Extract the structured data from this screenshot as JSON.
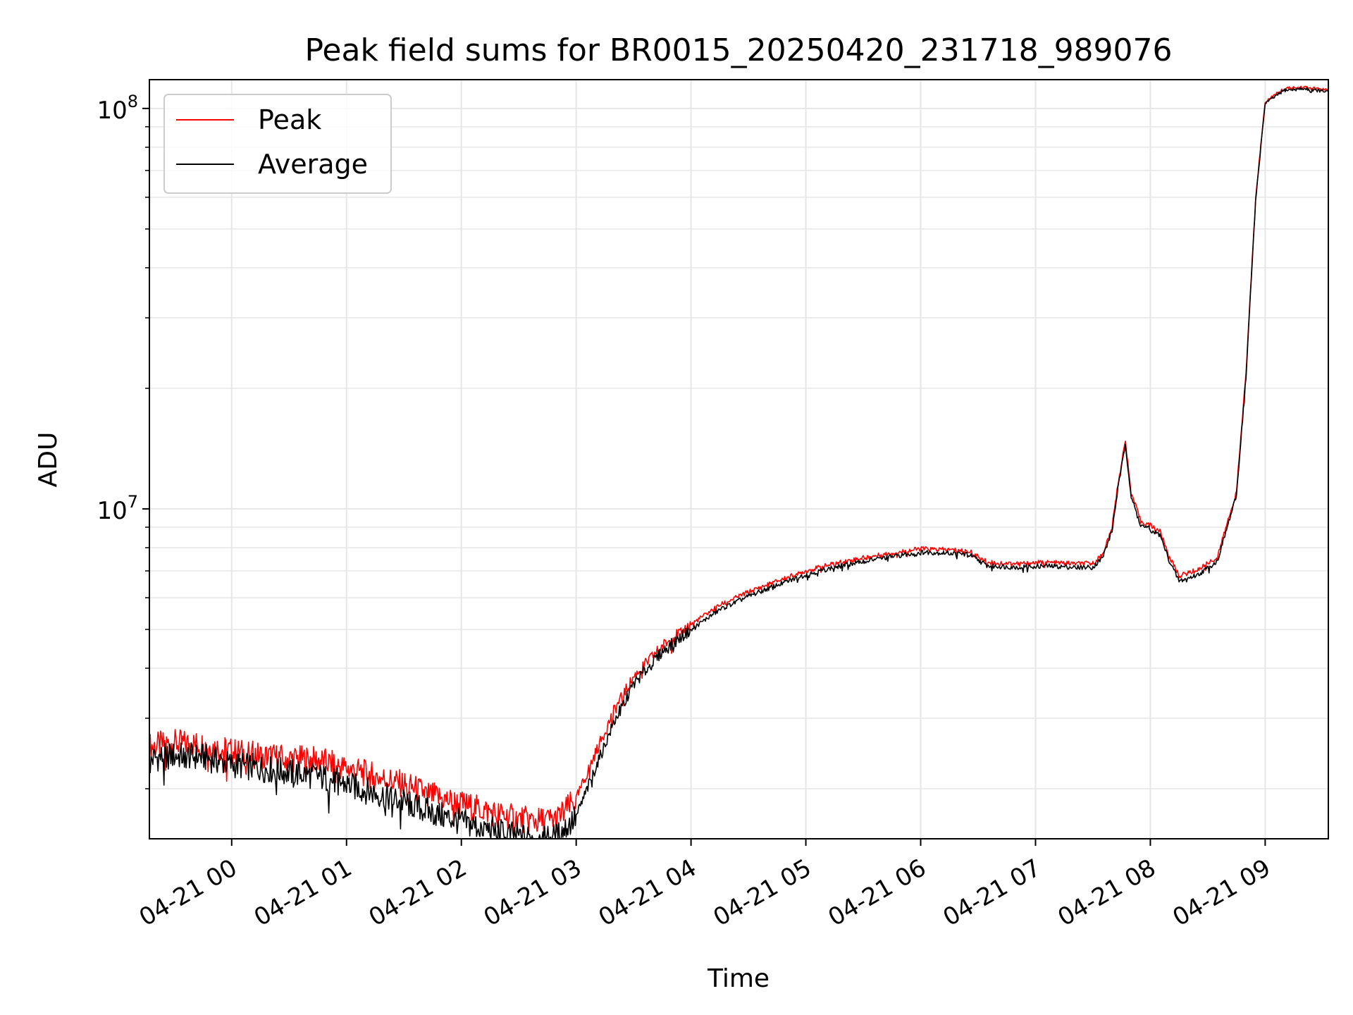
{
  "chart_data": {
    "type": "line",
    "title": "Peak field sums for BR0015_20250420_231718_989076",
    "xlabel": "Time",
    "ylabel": "ADU",
    "y_scale": "log",
    "xlim": [
      "2025-04-20 23:17",
      "2025-04-21 09:33"
    ],
    "ylim": [
      1500000,
      118000000
    ],
    "grid": true,
    "legend_placement": "upper left",
    "x_ticks": [
      "04-21 00",
      "04-21 01",
      "04-21 02",
      "04-21 03",
      "04-21 04",
      "04-21 05",
      "04-21 06",
      "04-21 07",
      "04-21 08",
      "04-21 09"
    ],
    "y_ticks": [
      {
        "base": "10",
        "exp": "7",
        "value": 10000000
      },
      {
        "base": "10",
        "exp": "8",
        "value": 100000000
      }
    ],
    "series": [
      {
        "name": "Peak",
        "color": "#ff0000",
        "x": [
          "2025-04-20 23:17",
          "2025-04-20 23:30",
          "2025-04-20 23:45",
          "2025-04-21 00:00",
          "2025-04-21 00:15",
          "2025-04-21 00:30",
          "2025-04-21 00:45",
          "2025-04-21 01:00",
          "2025-04-21 01:15",
          "2025-04-21 01:30",
          "2025-04-21 01:45",
          "2025-04-21 02:00",
          "2025-04-21 02:15",
          "2025-04-21 02:30",
          "2025-04-21 02:40",
          "2025-04-21 02:50",
          "2025-04-21 03:00",
          "2025-04-21 03:10",
          "2025-04-21 03:20",
          "2025-04-21 03:30",
          "2025-04-21 03:45",
          "2025-04-21 04:00",
          "2025-04-21 04:15",
          "2025-04-21 04:30",
          "2025-04-21 04:45",
          "2025-04-21 05:00",
          "2025-04-21 05:15",
          "2025-04-21 05:30",
          "2025-04-21 05:45",
          "2025-04-21 06:00",
          "2025-04-21 06:15",
          "2025-04-21 06:25",
          "2025-04-21 06:35",
          "2025-04-21 06:50",
          "2025-04-21 07:05",
          "2025-04-21 07:20",
          "2025-04-21 07:30",
          "2025-04-21 07:35",
          "2025-04-21 07:40",
          "2025-04-21 07:43",
          "2025-04-21 07:47",
          "2025-04-21 07:50",
          "2025-04-21 07:55",
          "2025-04-21 08:00",
          "2025-04-21 08:05",
          "2025-04-21 08:10",
          "2025-04-21 08:15",
          "2025-04-21 08:25",
          "2025-04-21 08:35",
          "2025-04-21 08:45",
          "2025-04-21 08:50",
          "2025-04-21 08:55",
          "2025-04-21 09:00",
          "2025-04-21 09:10",
          "2025-04-21 09:20",
          "2025-04-21 09:33"
        ],
        "y": [
          2550000,
          2600000,
          2580000,
          2480000,
          2420000,
          2380000,
          2360000,
          2250000,
          2150000,
          2050000,
          1920000,
          1830000,
          1750000,
          1680000,
          1660000,
          1680000,
          1880000,
          2450000,
          3150000,
          3800000,
          4550000,
          5150000,
          5750000,
          6200000,
          6600000,
          7000000,
          7300000,
          7550000,
          7750000,
          7950000,
          7900000,
          7850000,
          7350000,
          7300000,
          7350000,
          7300000,
          7300000,
          7700000,
          9000000,
          11500000,
          14800000,
          11000000,
          9300000,
          9100000,
          8800000,
          7600000,
          6800000,
          7050000,
          7600000,
          11000000,
          22000000,
          60000000,
          104000000,
          112000000,
          113000000,
          111000000
        ]
      },
      {
        "name": "Average",
        "color": "#000000",
        "x": [
          "2025-04-20 23:17",
          "2025-04-20 23:30",
          "2025-04-20 23:45",
          "2025-04-21 00:00",
          "2025-04-21 00:15",
          "2025-04-21 00:30",
          "2025-04-21 00:45",
          "2025-04-21 01:00",
          "2025-04-21 01:15",
          "2025-04-21 01:30",
          "2025-04-21 01:45",
          "2025-04-21 02:00",
          "2025-04-21 02:15",
          "2025-04-21 02:30",
          "2025-04-21 02:40",
          "2025-04-21 02:50",
          "2025-04-21 03:00",
          "2025-04-21 03:10",
          "2025-04-21 03:20",
          "2025-04-21 03:30",
          "2025-04-21 03:45",
          "2025-04-21 04:00",
          "2025-04-21 04:15",
          "2025-04-21 04:30",
          "2025-04-21 04:45",
          "2025-04-21 05:00",
          "2025-04-21 05:15",
          "2025-04-21 05:30",
          "2025-04-21 05:45",
          "2025-04-21 06:00",
          "2025-04-21 06:15",
          "2025-04-21 06:25",
          "2025-04-21 06:35",
          "2025-04-21 06:50",
          "2025-04-21 07:05",
          "2025-04-21 07:20",
          "2025-04-21 07:30",
          "2025-04-21 07:35",
          "2025-04-21 07:40",
          "2025-04-21 07:43",
          "2025-04-21 07:47",
          "2025-04-21 07:50",
          "2025-04-21 07:55",
          "2025-04-21 08:00",
          "2025-04-21 08:05",
          "2025-04-21 08:10",
          "2025-04-21 08:15",
          "2025-04-21 08:25",
          "2025-04-21 08:35",
          "2025-04-21 08:45",
          "2025-04-21 08:50",
          "2025-04-21 08:55",
          "2025-04-21 09:00",
          "2025-04-21 09:10",
          "2025-04-21 09:20",
          "2025-04-21 09:33"
        ],
        "y": [
          2380000,
          2420000,
          2400000,
          2300000,
          2250000,
          2200000,
          2150000,
          2050000,
          1950000,
          1850000,
          1740000,
          1650000,
          1580000,
          1520000,
          1500000,
          1520000,
          1700000,
          2250000,
          2950000,
          3650000,
          4400000,
          5000000,
          5600000,
          6050000,
          6450000,
          6850000,
          7150000,
          7400000,
          7600000,
          7800000,
          7750000,
          7700000,
          7200000,
          7150000,
          7200000,
          7150000,
          7150000,
          7550000,
          8800000,
          11200000,
          14500000,
          10700000,
          9100000,
          8900000,
          8600000,
          7400000,
          6600000,
          6850000,
          7400000,
          10800000,
          21500000,
          59000000,
          103000000,
          111000000,
          112000000,
          110000000
        ]
      }
    ]
  }
}
